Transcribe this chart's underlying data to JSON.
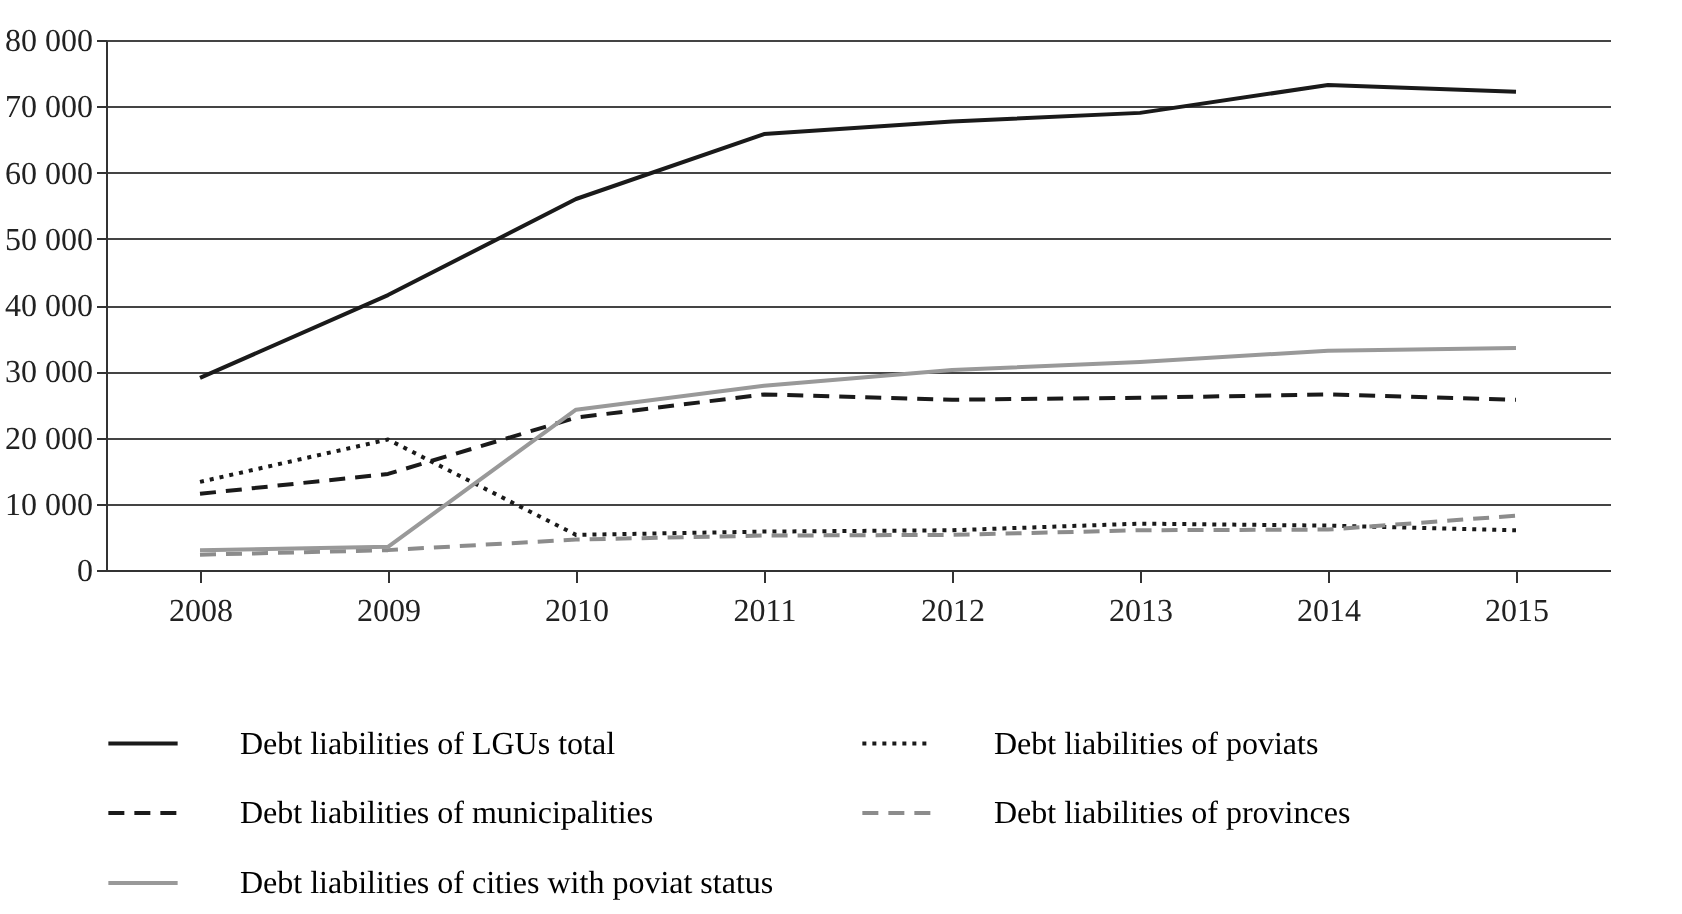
{
  "chart_data": {
    "type": "line",
    "categories": [
      "2008",
      "2009",
      "2010",
      "2011",
      "2012",
      "2013",
      "2014",
      "2015"
    ],
    "series": [
      {
        "name": "Debt liabilities of LGUs total",
        "color": "#1a1a1a",
        "line_style": "solid",
        "values": [
          29000,
          41500,
          56000,
          65800,
          67700,
          69000,
          73200,
          72200
        ]
      },
      {
        "name": "Debt liabilities of poviats",
        "color": "#1a1a1a",
        "line_style": "dotted",
        "values": [
          13300,
          19700,
          5300,
          5800,
          6000,
          7000,
          6700,
          6000
        ]
      },
      {
        "name": "Debt liabilities of municipalities",
        "color": "#1a1a1a",
        "line_style": "dashed",
        "values": [
          11500,
          14500,
          23000,
          26500,
          25700,
          26000,
          26500,
          25700
        ]
      },
      {
        "name": "Debt liabilities of provinces",
        "color": "#8c8c8c",
        "line_style": "dashed",
        "values": [
          2300,
          3000,
          4600,
          5200,
          5300,
          6000,
          6100,
          8200
        ]
      },
      {
        "name": "Debt liabilities of cities with poviat status",
        "color": "#999999",
        "line_style": "solid",
        "values": [
          3000,
          3500,
          24200,
          27800,
          30200,
          31400,
          33100,
          33500
        ]
      }
    ],
    "ylim": [
      0,
      80000
    ],
    "yticks": [
      {
        "value": 0,
        "label": "0"
      },
      {
        "value": 10000,
        "label": "10 000"
      },
      {
        "value": 20000,
        "label": "20 000"
      },
      {
        "value": 30000,
        "label": "30 000"
      },
      {
        "value": 40000,
        "label": "40 000"
      },
      {
        "value": 50000,
        "label": "50 000"
      },
      {
        "value": 60000,
        "label": "60 000"
      },
      {
        "value": 70000,
        "label": "70 000"
      },
      {
        "value": 80000,
        "label": "80 000"
      }
    ],
    "grid": "y",
    "legend": "bottom",
    "marker": "none"
  }
}
